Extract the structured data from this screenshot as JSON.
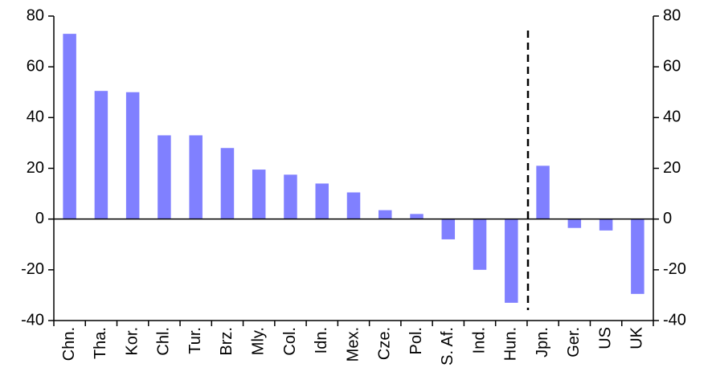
{
  "chart_data": {
    "type": "bar",
    "categories": [
      "Chn.",
      "Tha.",
      "Kor.",
      "Chl.",
      "Tur.",
      "Brz.",
      "Mly.",
      "Col.",
      "Idn.",
      "Mex.",
      "Cze.",
      "Pol.",
      "S. Af.",
      "Ind.",
      "Hun.",
      "Jpn.",
      "Ger.",
      "US",
      "UK"
    ],
    "values": [
      73,
      50.5,
      50,
      33,
      33,
      28,
      19.5,
      17.5,
      14,
      10.5,
      3.5,
      2,
      -8,
      -20,
      -33,
      21,
      -3.5,
      -4.5,
      -29.5
    ],
    "color": "#8080ff",
    "ylim": [
      -40,
      80
    ],
    "yticks": [
      -40,
      -20,
      0,
      20,
      40,
      60,
      80
    ],
    "y2lim": [
      -40,
      80
    ],
    "y2ticks": [
      -40,
      -20,
      0,
      20,
      40,
      60,
      80
    ],
    "grid": false
  }
}
